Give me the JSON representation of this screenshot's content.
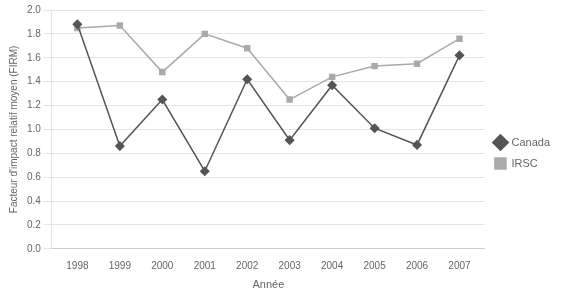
{
  "chart_data": {
    "type": "line",
    "x": [
      1998,
      1999,
      2000,
      2001,
      2002,
      2003,
      2004,
      2005,
      2006,
      2007
    ],
    "series": [
      {
        "name": "Canada",
        "color": "#555555",
        "marker": "diamond",
        "values": [
          1.88,
          0.86,
          1.25,
          0.65,
          1.42,
          0.91,
          1.37,
          1.01,
          0.87,
          1.62
        ]
      },
      {
        "name": "IRSC",
        "color": "#aaaaaa",
        "marker": "square",
        "values": [
          1.85,
          1.87,
          1.48,
          1.8,
          1.68,
          1.25,
          1.44,
          1.53,
          1.55,
          1.76
        ]
      }
    ],
    "xlabel": "Année",
    "ylabel": "Facteur d'impact relatif moyen (FIRM)",
    "xlim": [
      1997.4,
      2007.6
    ],
    "xticks": [
      1998,
      1999,
      2000,
      2001,
      2002,
      2003,
      2004,
      2005,
      2006,
      2007
    ],
    "ylim": [
      0.0,
      2.0
    ],
    "yticks": [
      {
        "value": 0,
        "label": "0.0"
      },
      0.2,
      0.4,
      0.6,
      0.8,
      {
        "value": 1,
        "label": "1.0"
      },
      1.2,
      1.4,
      1.6,
      1.8,
      {
        "value": 2,
        "label": "2.0"
      }
    ],
    "grid": "y",
    "legend": "right"
  }
}
